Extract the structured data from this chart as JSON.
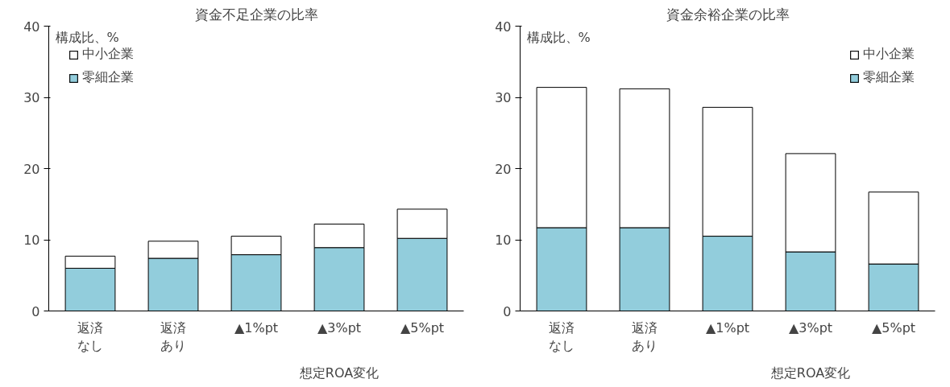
{
  "chart_data": [
    {
      "type": "bar",
      "title": "資金不足企業の比率",
      "ylabel": "構成比、%",
      "categories": [
        "返済なし",
        "返済あり",
        "▲1%pt",
        "▲3%pt",
        "▲5%pt"
      ],
      "stacked": true,
      "ylim": [
        0,
        40
      ],
      "yticks": [
        0,
        10,
        20,
        30,
        40
      ],
      "grid": false,
      "legend": "top left",
      "annotations": [
        "想定ROA変化"
      ],
      "series": [
        {
          "name": "零細企業",
          "color": "#92cddc",
          "values": [
            6.0,
            7.4,
            7.9,
            8.9,
            10.2
          ]
        },
        {
          "name": "中小企業",
          "color": "#ffffff",
          "values": [
            1.7,
            2.4,
            2.6,
            3.3,
            4.1
          ]
        }
      ]
    },
    {
      "type": "bar",
      "title": "資金余裕企業の比率",
      "ylabel": "構成比、%",
      "categories": [
        "返済なし",
        "返済あり",
        "▲1%pt",
        "▲3%pt",
        "▲5%pt"
      ],
      "stacked": true,
      "ylim": [
        0,
        40
      ],
      "yticks": [
        0,
        10,
        20,
        30,
        40
      ],
      "grid": false,
      "legend": "top right",
      "annotations": [
        "想定ROA変化"
      ],
      "series": [
        {
          "name": "零細企業",
          "color": "#92cddc",
          "values": [
            11.7,
            11.7,
            10.5,
            8.3,
            6.6
          ]
        },
        {
          "name": "中小企業",
          "color": "#ffffff",
          "values": [
            19.7,
            19.5,
            18.1,
            13.8,
            10.1
          ]
        }
      ]
    }
  ]
}
